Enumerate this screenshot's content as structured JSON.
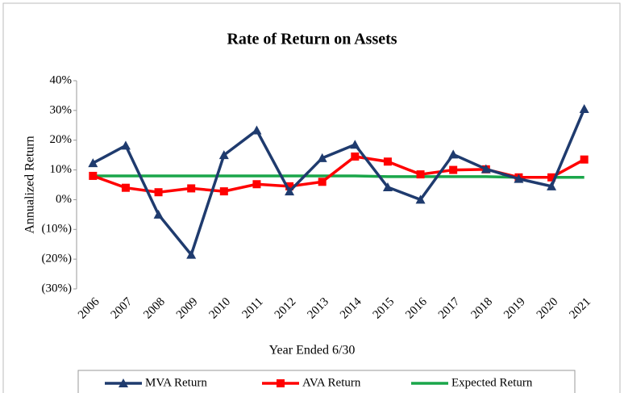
{
  "chart_data": {
    "type": "line",
    "title": "Rate of Return on Assets",
    "x_label": "Year Ended 6/30",
    "y_label": "Annualized Return",
    "categories": [
      "2006",
      "2007",
      "2008",
      "2009",
      "2010",
      "2011",
      "2012",
      "2013",
      "2014",
      "2015",
      "2016",
      "2017",
      "2018",
      "2019",
      "2020",
      "2021"
    ],
    "series": [
      {
        "name": "MVA Return",
        "color": "#1f3b6e",
        "marker": "triangle",
        "values": [
          12.3,
          18.2,
          -5.0,
          -18.5,
          15.0,
          23.3,
          2.8,
          14.0,
          18.5,
          4.2,
          0.0,
          15.2,
          10.3,
          7.0,
          4.5,
          30.5
        ]
      },
      {
        "name": "AVA Return",
        "color": "#ff0000",
        "marker": "square",
        "values": [
          8.0,
          4.0,
          2.5,
          3.8,
          2.8,
          5.2,
          4.5,
          6.0,
          14.5,
          12.8,
          8.5,
          10.0,
          10.2,
          7.5,
          7.5,
          13.5
        ]
      },
      {
        "name": "Expected Return",
        "color": "#1aa64a",
        "marker": "none",
        "values": [
          8.0,
          8.0,
          8.0,
          8.0,
          8.0,
          8.0,
          8.0,
          8.0,
          8.0,
          7.75,
          7.75,
          7.75,
          7.75,
          7.5,
          7.5,
          7.5
        ]
      }
    ],
    "ylim": [
      -30,
      40
    ],
    "yticks": [
      {
        "value": -30,
        "label": "(30%)"
      },
      {
        "value": -20,
        "label": "(20%)"
      },
      {
        "value": -10,
        "label": "(10%)"
      },
      {
        "value": 0,
        "label": "0%"
      },
      {
        "value": 10,
        "label": "10%"
      },
      {
        "value": 20,
        "label": "20%"
      },
      {
        "value": 30,
        "label": "30%"
      },
      {
        "value": 40,
        "label": "40%"
      }
    ],
    "grid": false,
    "legend": "bottom"
  }
}
